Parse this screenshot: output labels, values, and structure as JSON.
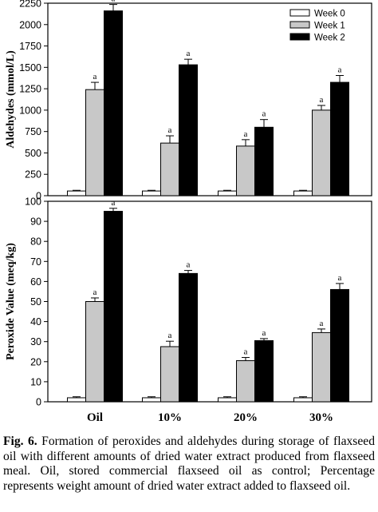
{
  "chart_data": [
    {
      "type": "bar",
      "categories": [
        "Oil",
        "10%",
        "20%",
        "30%"
      ],
      "series": [
        {
          "name": "Week 0",
          "color": "#ffffff",
          "values": [
            55,
            55,
            55,
            55
          ],
          "errors": [
            8,
            8,
            8,
            8
          ],
          "labels": [
            "",
            "",
            "",
            ""
          ]
        },
        {
          "name": "Week 1",
          "color": "#c8c8c8",
          "values": [
            1240,
            615,
            580,
            1000
          ],
          "errors": [
            85,
            85,
            75,
            55
          ],
          "labels": [
            "a",
            "a",
            "a",
            "a"
          ]
        },
        {
          "name": "Week 2",
          "color": "#000000",
          "values": [
            2160,
            1530,
            800,
            1325
          ],
          "errors": [
            75,
            65,
            90,
            80
          ],
          "labels": [
            "a",
            "a",
            "a",
            "a"
          ]
        }
      ],
      "ylabel": "Aldehydes (mmol/L)",
      "ylim": [
        0,
        2250
      ],
      "yticks": [
        0,
        250,
        500,
        750,
        1000,
        1250,
        1500,
        1750,
        2000,
        2250
      ],
      "legend": "top-right",
      "grid": false
    },
    {
      "type": "bar",
      "categories": [
        "Oil",
        "10%",
        "20%",
        "30%"
      ],
      "series": [
        {
          "name": "Week 0",
          "color": "#ffffff",
          "values": [
            2,
            2,
            2,
            2
          ],
          "errors": [
            0.5,
            0.5,
            0.5,
            0.5
          ],
          "labels": [
            "",
            "",
            "",
            ""
          ]
        },
        {
          "name": "Week 1",
          "color": "#c8c8c8",
          "values": [
            50,
            27.5,
            20.5,
            34.5
          ],
          "errors": [
            1.8,
            2.7,
            1.6,
            1.8
          ],
          "labels": [
            "a",
            "a",
            "a",
            "a"
          ]
        },
        {
          "name": "Week 2",
          "color": "#000000",
          "values": [
            95,
            64,
            30.5,
            56
          ],
          "errors": [
            1.5,
            1.5,
            1.0,
            3.0
          ],
          "labels": [
            "a",
            "a",
            "a",
            "a"
          ]
        }
      ],
      "ylabel": "Peroxide Value (meq/kg)",
      "ylim": [
        0,
        100
      ],
      "yticks": [
        0,
        10,
        20,
        30,
        40,
        50,
        60,
        70,
        80,
        90,
        100
      ],
      "legend": "none",
      "grid": false
    }
  ],
  "caption": {
    "label": "Fig. 6.",
    "text": " Formation of peroxides and aldehydes during storage of flaxseed oil with different amounts of dried water extract produced from flaxseed meal. Oil, stored commercial flaxseed oil as control; Percentage represents weight amount of dried water extract added to flaxseed oil."
  }
}
